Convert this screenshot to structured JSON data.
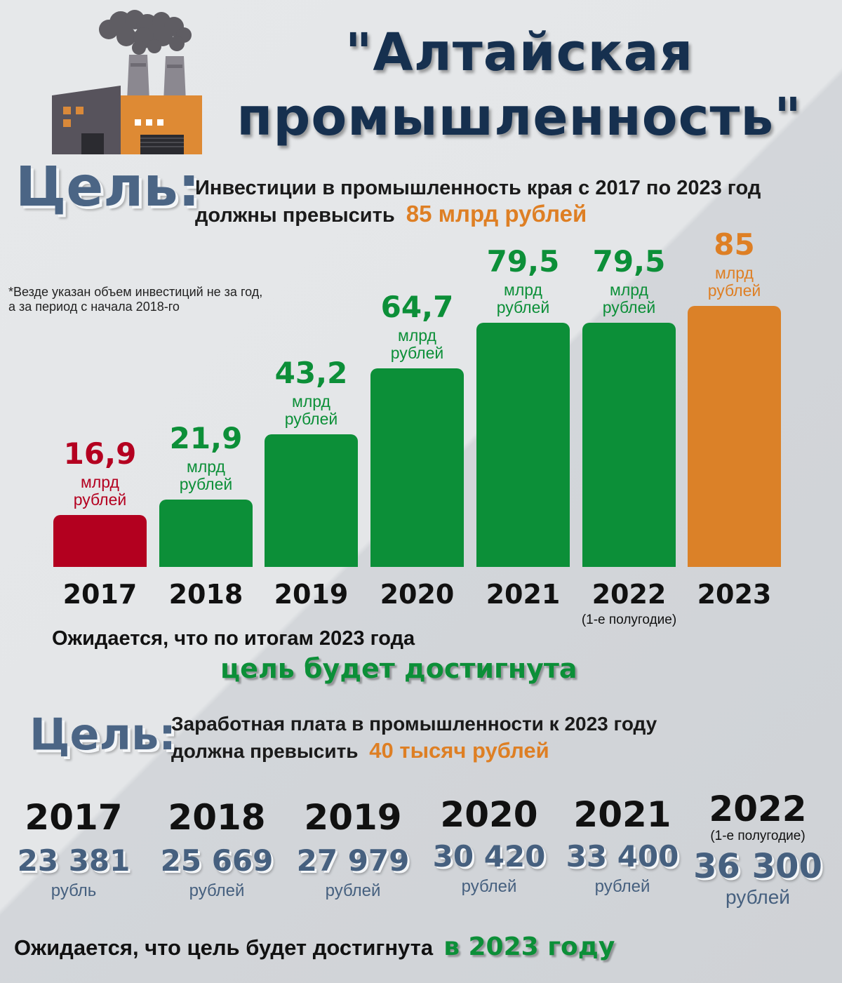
{
  "title_line1": "\"Алтайская",
  "title_line2": "промышленность\"",
  "goal1": {
    "label": "Цель:",
    "line1": "Инвестиции в промышленность края с 2017 по 2023 год",
    "line2": "должны превысить",
    "highlight": "85 млрд рублей"
  },
  "note": {
    "line1": "*Везде указан объем инвестиций не за год,",
    "line2": "а за период с начала 2018-го"
  },
  "chart_data": {
    "type": "bar",
    "categories": [
      "2017",
      "2018",
      "2019",
      "2020",
      "2021",
      "2022",
      "2023"
    ],
    "category_notes": [
      "",
      "",
      "",
      "",
      "",
      "(1-е полугодие)",
      ""
    ],
    "values": [
      16.9,
      21.9,
      43.2,
      64.7,
      79.5,
      79.5,
      85
    ],
    "value_labels": [
      "16,9",
      "21,9",
      "43,2",
      "64,7",
      "79,5",
      "79,5",
      "85"
    ],
    "unit_line1": "млрд",
    "unit_line2": "рублей",
    "bar_colors": [
      "#b3001f",
      "#0c8f38",
      "#0c8f38",
      "#0c8f38",
      "#0c8f38",
      "#0c8f38",
      "#db8128"
    ],
    "label_colors": [
      "#b40020",
      "#0c8f38",
      "#0c8f38",
      "#0c8f38",
      "#0c8f38",
      "#0c8f38",
      "#de7f24"
    ],
    "ylim": [
      0,
      85
    ],
    "grid": false
  },
  "expect1": {
    "line1": "Ожидается, что по итогам 2023 года",
    "line2": "цель будет достигнута"
  },
  "goal2": {
    "label": "Цель:",
    "line1": "Заработная плата в промышленности к 2023 году",
    "line2": "должна превысить",
    "highlight": "40 тысяч рублей"
  },
  "salaries": [
    {
      "year": "2017",
      "note": "",
      "value": "23 381",
      "unit": "рубль"
    },
    {
      "year": "2018",
      "note": "",
      "value": "25 669",
      "unit": "рублей"
    },
    {
      "year": "2019",
      "note": "",
      "value": "27 979",
      "unit": "рублей"
    },
    {
      "year": "2020",
      "note": "",
      "value": "30 420",
      "unit": "рублей"
    },
    {
      "year": "2021",
      "note": "",
      "value": "33 400",
      "unit": "рублей"
    },
    {
      "year": "2022",
      "note": "(1-е полугодие)",
      "value": "36 300",
      "unit": "рублей"
    }
  ],
  "expect2": {
    "text": "Ожидается, что цель будет достигнута",
    "highlight": "в 2023 году"
  },
  "colors": {
    "navy": "#16304f",
    "slate": "#46607f",
    "green": "#0c8f38",
    "orange": "#db8128",
    "red": "#b3001f"
  },
  "icons": [
    "factory-icon"
  ]
}
